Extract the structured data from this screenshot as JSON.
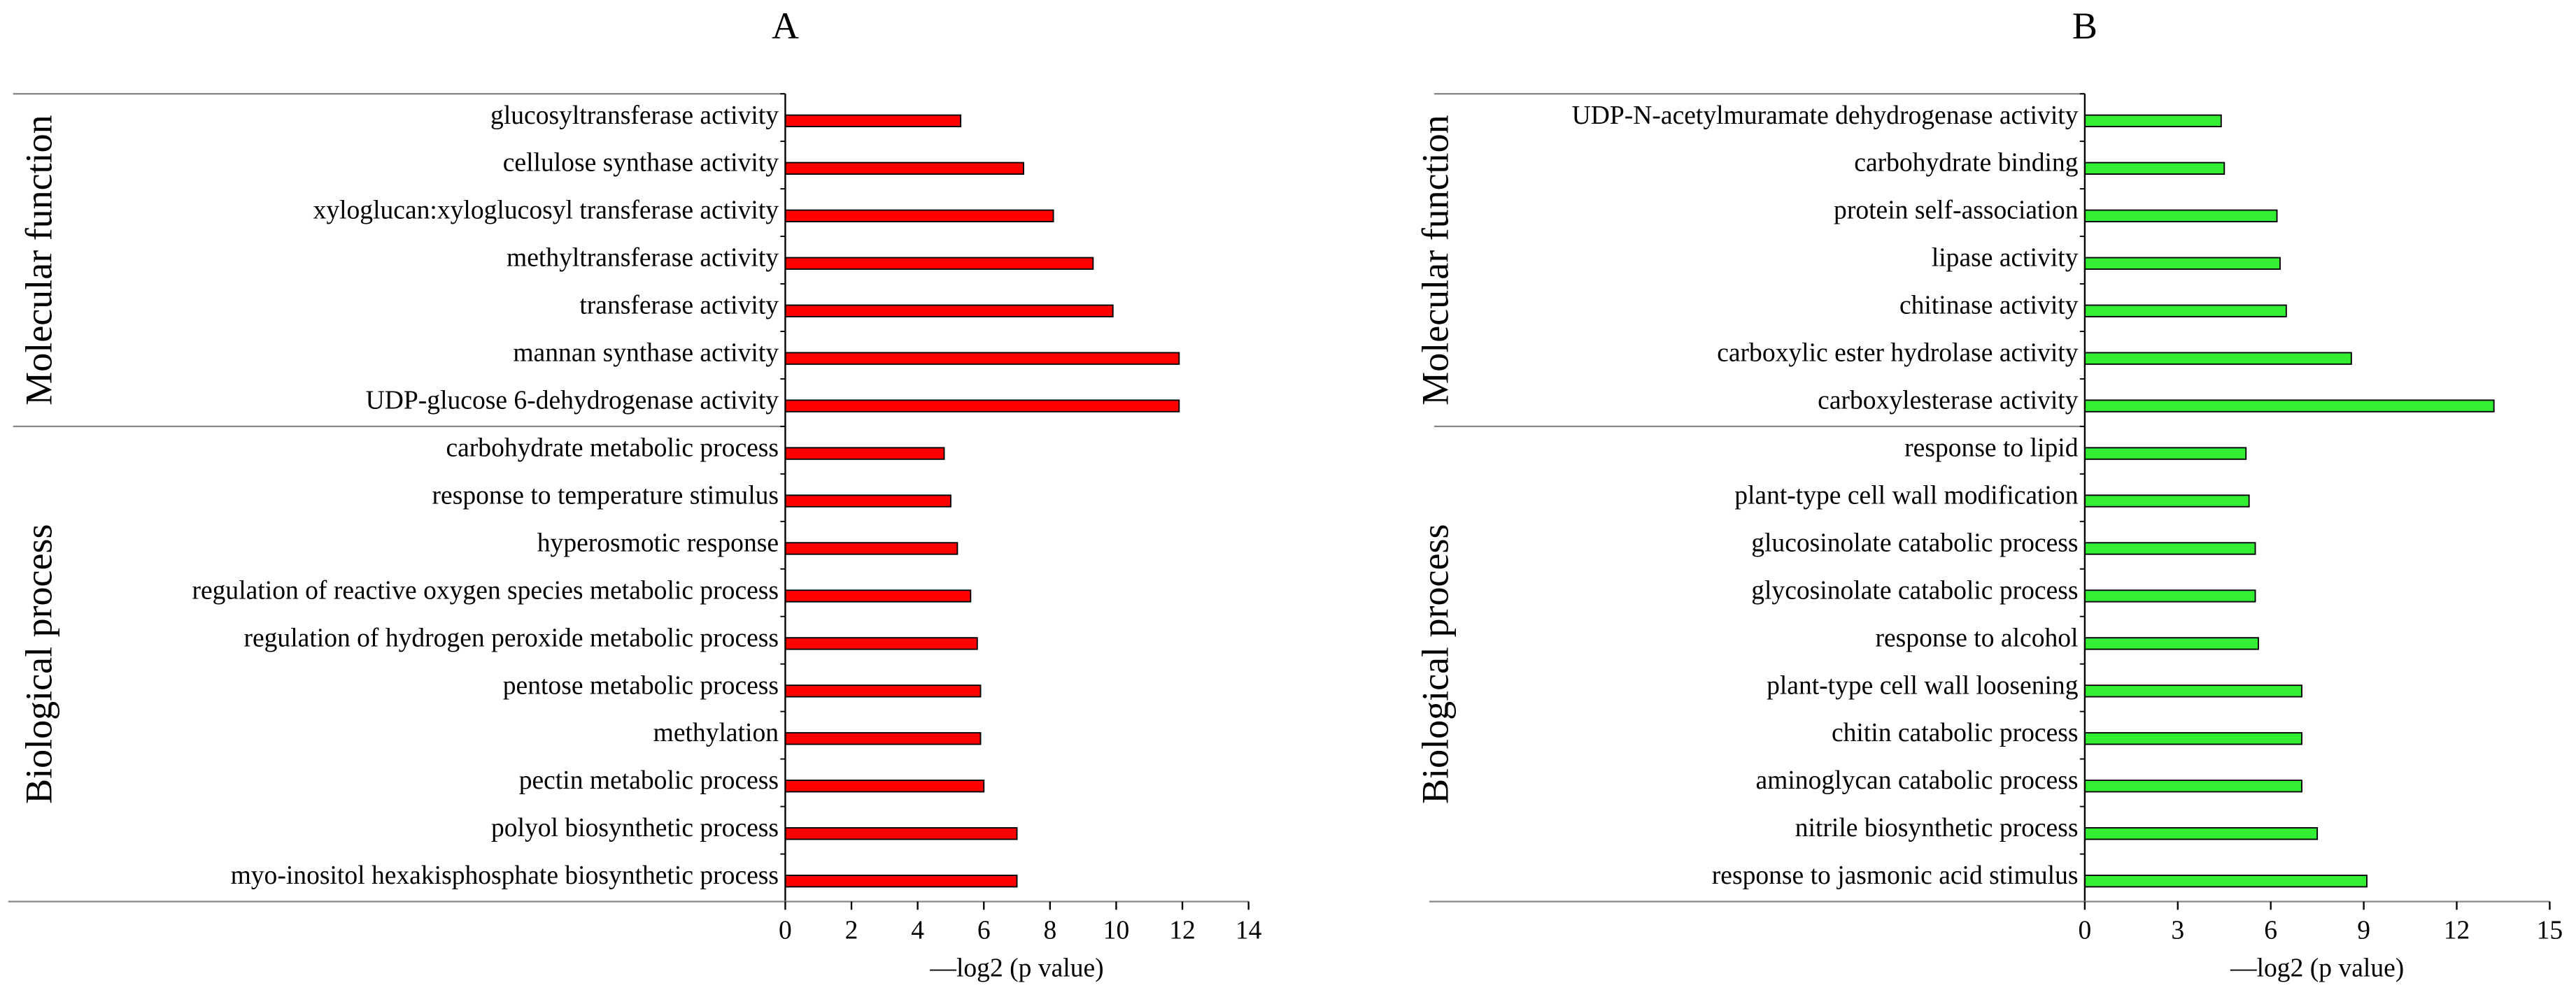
{
  "chart_data": [
    {
      "type": "bar",
      "orientation": "horizontal",
      "title": "A",
      "color": "#ff0000",
      "x_label": "—log2 (p value)",
      "xlim": [
        0,
        14
      ],
      "xticks": [
        0,
        2,
        4,
        6,
        8,
        10,
        12,
        14
      ],
      "groups": [
        {
          "name": "Molecular function",
          "categories": [
            "glucosyltransferase activity",
            "cellulose synthase activity",
            "xyloglucan:xyloglucosyl transferase activity",
            "methyltransferase activity",
            "transferase activity",
            "mannan synthase activity",
            "UDP-glucose 6-dehydrogenase activity"
          ],
          "values": [
            5.3,
            7.2,
            8.1,
            9.3,
            9.9,
            11.9,
            11.9
          ]
        },
        {
          "name": "Biological process",
          "categories": [
            "carbohydrate metabolic process",
            "response to temperature stimulus",
            "hyperosmotic response",
            "regulation of reactive oxygen species metabolic process",
            "regulation of hydrogen peroxide metabolic process",
            "pentose metabolic process",
            "methylation",
            "pectin metabolic process",
            "polyol biosynthetic process",
            "myo-inositol hexakisphosphate biosynthetic process"
          ],
          "values": [
            4.8,
            5.0,
            5.2,
            5.6,
            5.8,
            5.9,
            5.9,
            6.0,
            7.0,
            7.0
          ]
        }
      ]
    },
    {
      "type": "bar",
      "orientation": "horizontal",
      "title": "B",
      "color": "#33ee33",
      "x_label": "—log2 (p value)",
      "xlim": [
        0,
        15
      ],
      "xticks": [
        0,
        3,
        6,
        9,
        12,
        15
      ],
      "groups": [
        {
          "name": "Molecular function",
          "categories": [
            "UDP-N-acetylmuramate dehydrogenase activity",
            "carbohydrate binding",
            "protein self-association",
            "lipase activity",
            "chitinase activity",
            "carboxylic ester hydrolase activity",
            "carboxylesterase activity"
          ],
          "values": [
            4.4,
            4.5,
            6.2,
            6.3,
            6.5,
            8.6,
            13.2
          ]
        },
        {
          "name": "Biological process",
          "categories": [
            "response to lipid",
            "plant-type cell wall modification",
            "glucosinolate catabolic process",
            "glycosinolate catabolic process",
            "response to alcohol",
            "plant-type cell wall loosening",
            "chitin catabolic process",
            "aminoglycan catabolic process",
            "nitrile biosynthetic process",
            "response to jasmonic acid stimulus"
          ],
          "values": [
            5.2,
            5.3,
            5.5,
            5.5,
            5.6,
            7.0,
            7.0,
            7.0,
            7.5,
            9.1
          ]
        }
      ]
    }
  ]
}
